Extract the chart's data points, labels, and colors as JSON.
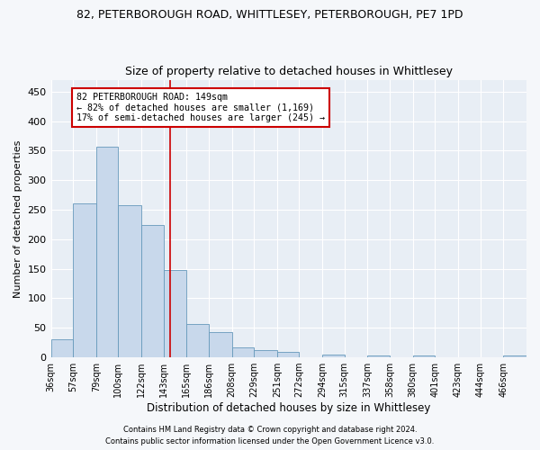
{
  "title": "82, PETERBOROUGH ROAD, WHITTLESEY, PETERBOROUGH, PE7 1PD",
  "subtitle": "Size of property relative to detached houses in Whittlesey",
  "xlabel": "Distribution of detached houses by size in Whittlesey",
  "ylabel": "Number of detached properties",
  "bar_edges": [
    36,
    57,
    79,
    100,
    122,
    143,
    165,
    186,
    208,
    229,
    251,
    272,
    294,
    315,
    337,
    358,
    380,
    401,
    423,
    444,
    466
  ],
  "bar_counts": [
    31,
    261,
    356,
    258,
    224,
    148,
    56,
    43,
    17,
    13,
    9,
    0,
    5,
    0,
    3,
    0,
    3,
    0,
    0,
    0,
    3
  ],
  "bar_color": "#c8d8eb",
  "bar_edge_color": "#6699bb",
  "vline_x": 149,
  "vline_color": "#cc0000",
  "annotation_text": "82 PETERBOROUGH ROAD: 149sqm\n← 82% of detached houses are smaller (1,169)\n17% of semi-detached houses are larger (245) →",
  "annotation_box_color": "#cc0000",
  "ylim": [
    0,
    470
  ],
  "yticks": [
    0,
    50,
    100,
    150,
    200,
    250,
    300,
    350,
    400,
    450
  ],
  "footer1": "Contains HM Land Registry data © Crown copyright and database right 2024.",
  "footer2": "Contains public sector information licensed under the Open Government Licence v3.0.",
  "bg_color": "#e8eef5",
  "grid_color": "#ffffff",
  "fig_bg_color": "#f5f7fa"
}
